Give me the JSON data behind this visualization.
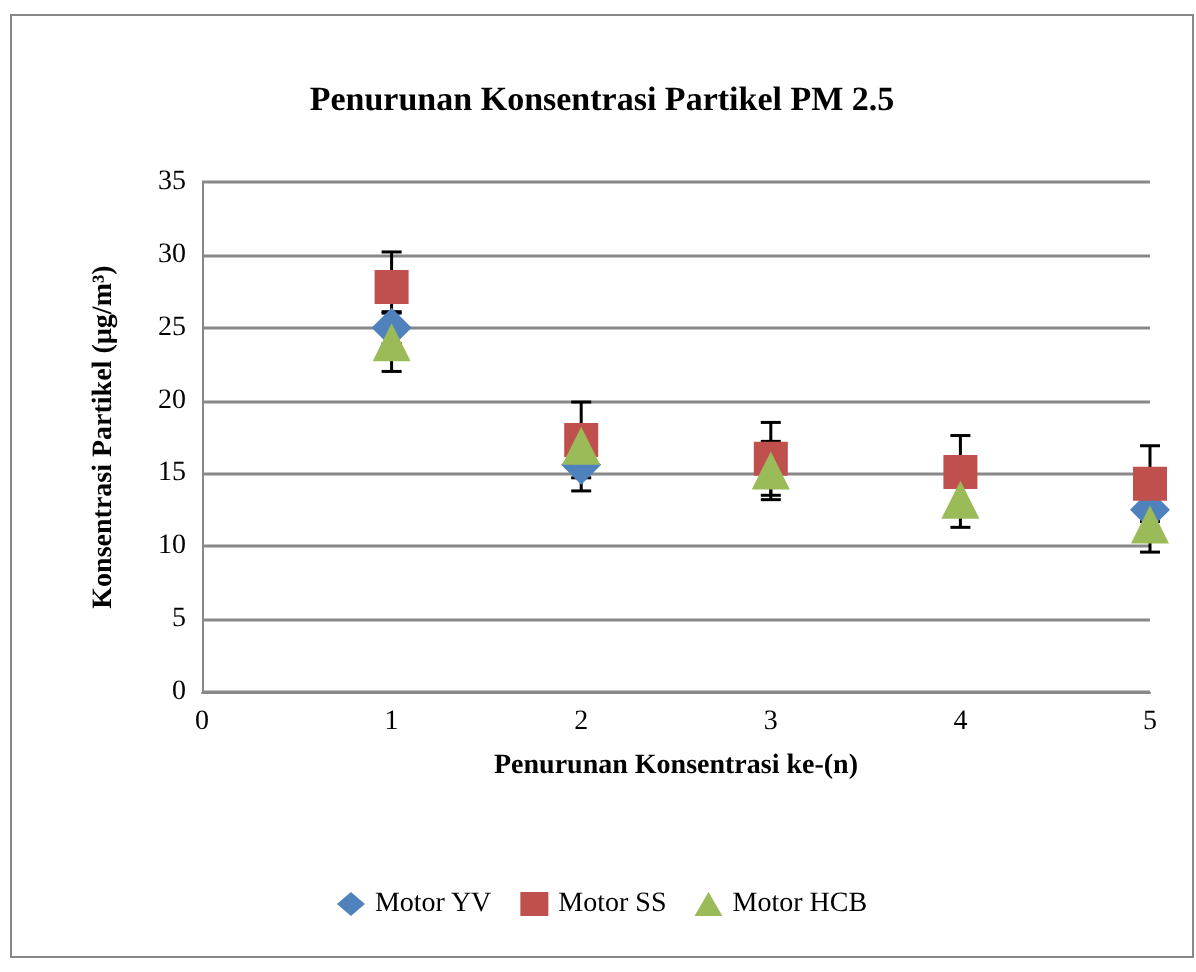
{
  "chart_data": {
    "type": "scatter",
    "title": "Penurunan Konsentrasi Partikel PM 2.5",
    "xlabel": "Penurunan Konsentrasi ke-(n)",
    "ylabel": "Konsentrasi Partikel (µg/m³)",
    "x": [
      1,
      2,
      3,
      4,
      5
    ],
    "series": [
      {
        "name": "Motor YV",
        "color": "#4f81bd",
        "marker": "diamond",
        "values": [
          25,
          15.6,
          null,
          null,
          12.5
        ],
        "errors": [
          1.1,
          1.8,
          null,
          null,
          null
        ]
      },
      {
        "name": "Motor SS",
        "color": "#c0504d",
        "marker": "square",
        "values": [
          27.8,
          17.3,
          16.0,
          15.1,
          14.3
        ],
        "errors": [
          2.4,
          2.6,
          2.5,
          2.5,
          2.6
        ]
      },
      {
        "name": "Motor HCB",
        "color": "#9bbb59",
        "marker": "triangle",
        "values": [
          24,
          16.9,
          15.2,
          13.2,
          11.5
        ],
        "errors": [
          2,
          null,
          2,
          1.9,
          1.9
        ]
      }
    ],
    "xlim": [
      0,
      5
    ],
    "xticks": [
      0,
      1,
      2,
      3,
      4,
      5
    ],
    "ylim": [
      0,
      35
    ],
    "yticks": [
      0,
      5,
      10,
      15,
      20,
      25,
      30,
      35
    ],
    "grid": "y",
    "legend": "bottom"
  }
}
